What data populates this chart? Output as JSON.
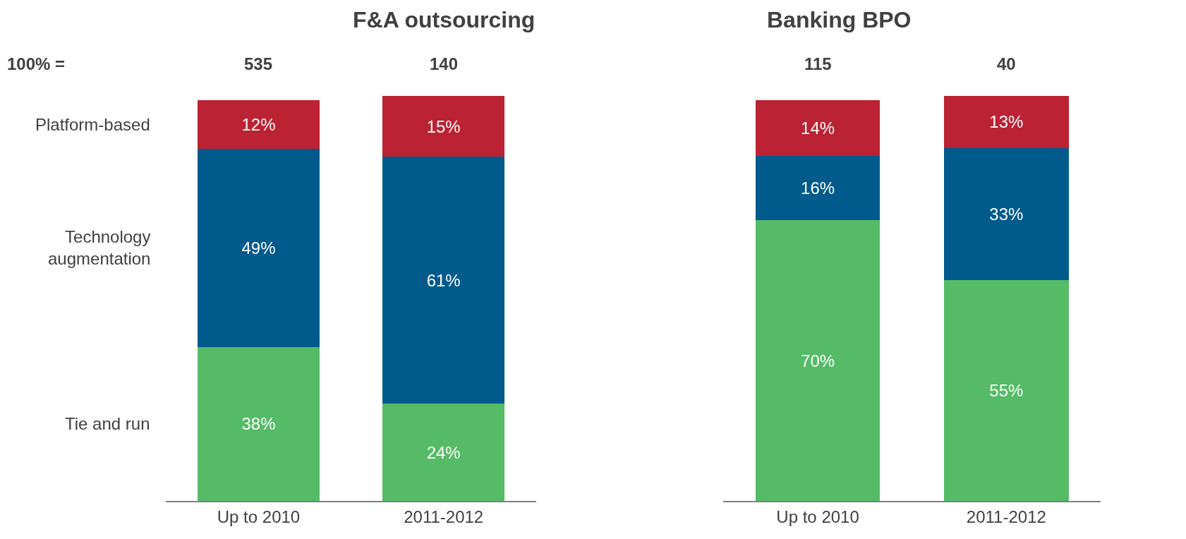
{
  "chart_data": [
    {
      "type": "bar",
      "title": "F&A outsourcing",
      "stacked": true,
      "legend": false,
      "tick_labels": "x",
      "categories": [
        "Up to 2010",
        "2011-2012"
      ],
      "annotations": [
        "100% =",
        "535",
        "140"
      ],
      "series": [
        {
          "name": "Tie and run",
          "color": "#55bb66",
          "values": [
            38,
            24
          ],
          "value_labels": [
            "38%",
            "24%"
          ]
        },
        {
          "name": "Technology augmentation",
          "color": "#005a8c",
          "values": [
            49,
            61
          ],
          "value_labels": [
            "49%",
            "61%"
          ]
        },
        {
          "name": "Platform-based",
          "color": "#bb2233",
          "values": [
            12,
            15
          ],
          "value_labels": [
            "12%",
            "15%"
          ]
        }
      ]
    },
    {
      "type": "bar",
      "title": "Banking BPO",
      "stacked": true,
      "legend": false,
      "tick_labels": "x",
      "categories": [
        "Up to 2010",
        "2011-2012"
      ],
      "annotations": [
        "115",
        "40"
      ],
      "series": [
        {
          "color": "#55bb66",
          "values": [
            70,
            55
          ],
          "value_labels": [
            "70%",
            "55%"
          ]
        },
        {
          "color": "#005a8c",
          "values": [
            16,
            33
          ],
          "value_labels": [
            "16%",
            "33%"
          ]
        },
        {
          "color": "#bb2233",
          "values": [
            14,
            13
          ],
          "value_labels": [
            "14%",
            "13%"
          ]
        }
      ]
    }
  ]
}
